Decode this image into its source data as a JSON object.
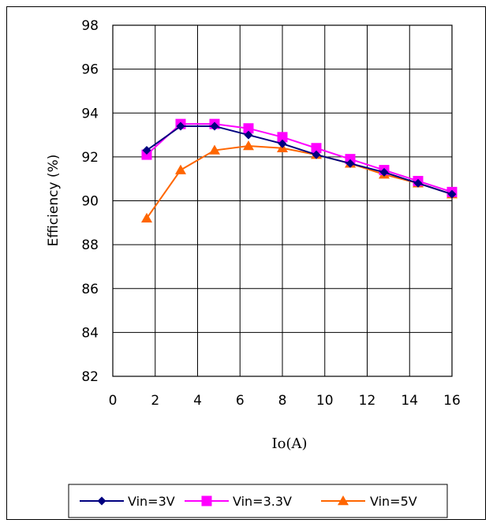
{
  "chart_data": {
    "type": "line",
    "title": "",
    "xlabel": "Io(A)",
    "ylabel": "Efficiency (%)",
    "xlim": [
      0,
      16
    ],
    "ylim": [
      82,
      98
    ],
    "xticks": [
      "0",
      "2",
      "4",
      "6",
      "8",
      "10",
      "12",
      "14",
      "16"
    ],
    "yticks": [
      "82",
      "84",
      "86",
      "88",
      "90",
      "92",
      "94",
      "96",
      "98"
    ],
    "grid": true,
    "legend_position": "bottom",
    "series": [
      {
        "name": "Vin=3V",
        "color": "#000080",
        "marker": "diamond",
        "x": [
          1.6,
          3.2,
          4.8,
          6.4,
          8.0,
          9.6,
          11.2,
          12.8,
          14.4,
          16.0
        ],
        "y": [
          92.3,
          93.4,
          93.4,
          93.0,
          92.6,
          92.1,
          91.7,
          91.3,
          90.8,
          90.3
        ]
      },
      {
        "name": "Vin=3.3V",
        "color": "#ff00ff",
        "marker": "square",
        "x": [
          1.6,
          3.2,
          4.8,
          6.4,
          8.0,
          9.6,
          11.2,
          12.8,
          14.4,
          16.0
        ],
        "y": [
          92.1,
          93.5,
          93.5,
          93.3,
          92.9,
          92.4,
          91.9,
          91.4,
          90.9,
          90.4
        ]
      },
      {
        "name": "Vin=5V",
        "color": "#ff6600",
        "marker": "triangle",
        "x": [
          1.6,
          3.2,
          4.8,
          6.4,
          8.0,
          9.6,
          11.2,
          12.8,
          14.4,
          16.0
        ],
        "y": [
          89.2,
          91.4,
          92.3,
          92.5,
          92.4,
          92.1,
          91.7,
          91.2,
          90.8,
          90.3
        ]
      }
    ]
  }
}
